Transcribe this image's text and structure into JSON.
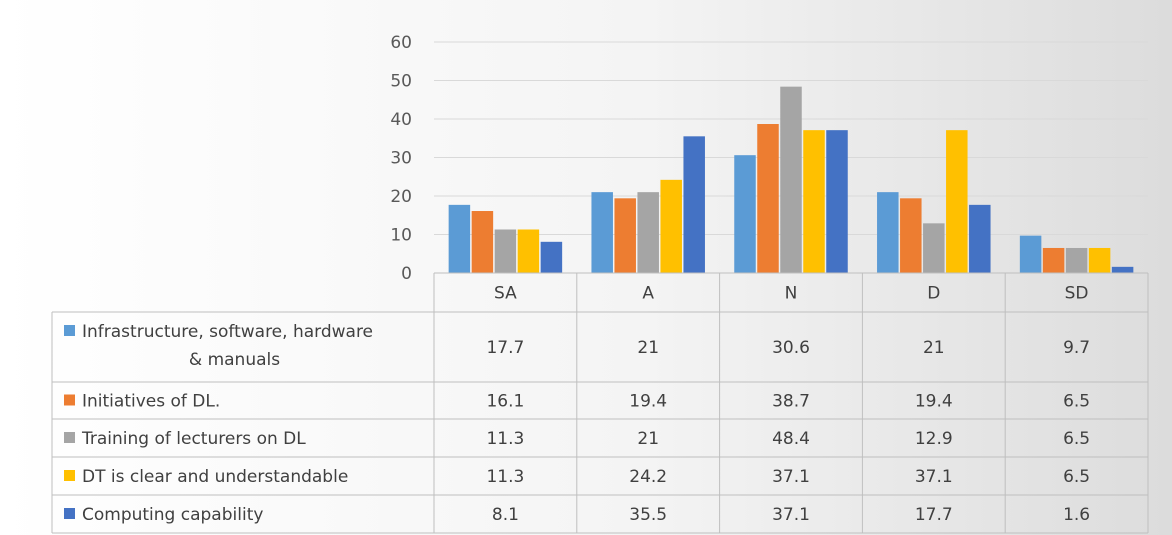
{
  "chart_data": {
    "type": "bar",
    "categories": [
      "SA",
      "A",
      "N",
      "D",
      "SD"
    ],
    "ylim": [
      0,
      60
    ],
    "yticks": [
      0,
      10,
      20,
      30,
      40,
      50,
      60
    ],
    "grid": true,
    "data_table": true,
    "series": [
      {
        "name": "Infrastructure, software, hardware & manuals",
        "name_lines": [
          "Infrastructure, software, hardware",
          "& manuals"
        ],
        "color": "#5b9bd5",
        "values": [
          17.7,
          21,
          30.6,
          21,
          9.7
        ]
      },
      {
        "name": "Initiatives of DL.",
        "name_lines": [
          "Initiatives of DL."
        ],
        "color": "#ed7d31",
        "values": [
          16.1,
          19.4,
          38.7,
          19.4,
          6.5
        ]
      },
      {
        "name": "Training of lecturers  on DL",
        "name_lines": [
          "Training of lecturers  on DL"
        ],
        "color": "#a5a5a5",
        "values": [
          11.3,
          21,
          48.4,
          12.9,
          6.5
        ]
      },
      {
        "name": "DT is clear and understandable",
        "name_lines": [
          "DT is clear and understandable"
        ],
        "color": "#ffc000",
        "values": [
          11.3,
          24.2,
          37.1,
          37.1,
          6.5
        ]
      },
      {
        "name": "Computing capability",
        "name_lines": [
          "Computing capability"
        ],
        "color": "#4472c4",
        "values": [
          8.1,
          35.5,
          37.1,
          17.7,
          1.6
        ]
      }
    ]
  }
}
